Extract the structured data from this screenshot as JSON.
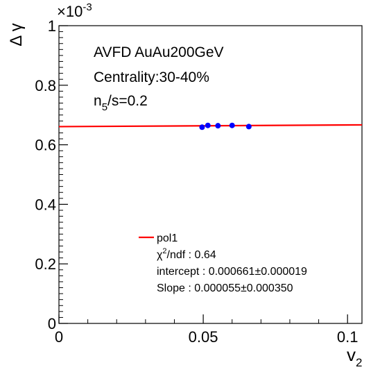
{
  "chart_data": {
    "type": "scatter",
    "title": "",
    "xlabel": "v",
    "xlabel_sub": "2",
    "ylabel": "Δ γ",
    "y_multiplier": "×10",
    "y_multiplier_exp": "-3",
    "xlim": [
      0,
      0.105
    ],
    "ylim": [
      0,
      1.0
    ],
    "x_ticks": [
      {
        "value": 0,
        "label": "0"
      },
      {
        "value": 0.05,
        "label": "0.05"
      },
      {
        "value": 0.1,
        "label": "0.1"
      }
    ],
    "y_ticks": [
      {
        "value": 0,
        "label": "0"
      },
      {
        "value": 0.2,
        "label": "0.2"
      },
      {
        "value": 0.4,
        "label": "0.4"
      },
      {
        "value": 0.6,
        "label": "0.6"
      },
      {
        "value": 0.8,
        "label": "0.8"
      },
      {
        "value": 1.0,
        "label": "1"
      }
    ],
    "grid": false,
    "series": [
      {
        "type": "scatter",
        "color": "#0000ff",
        "x": [
          0.0496,
          0.0516,
          0.0551,
          0.06,
          0.0658
        ],
        "y": [
          0.659,
          0.665,
          0.664,
          0.665,
          0.661
        ]
      },
      {
        "type": "line",
        "color": "#ff0000",
        "intercept": 0.661,
        "slope": 0.055
      }
    ],
    "annotations": {
      "line1": "AVFD AuAu200GeV",
      "line2": "Centrality:30-40%",
      "line3_base": "n",
      "line3_sub": "5",
      "line3_rest": "/s=0.2"
    },
    "legend": {
      "position": "bottom-center",
      "entry": "pol1",
      "chi2_prefix": "χ",
      "chi2_sup": "2",
      "chi2_rest": "/ndf : 0.64",
      "intercept": "intercept : 0.000661±0.000019",
      "slope": "Slope : 0.000055±0.000350"
    }
  }
}
